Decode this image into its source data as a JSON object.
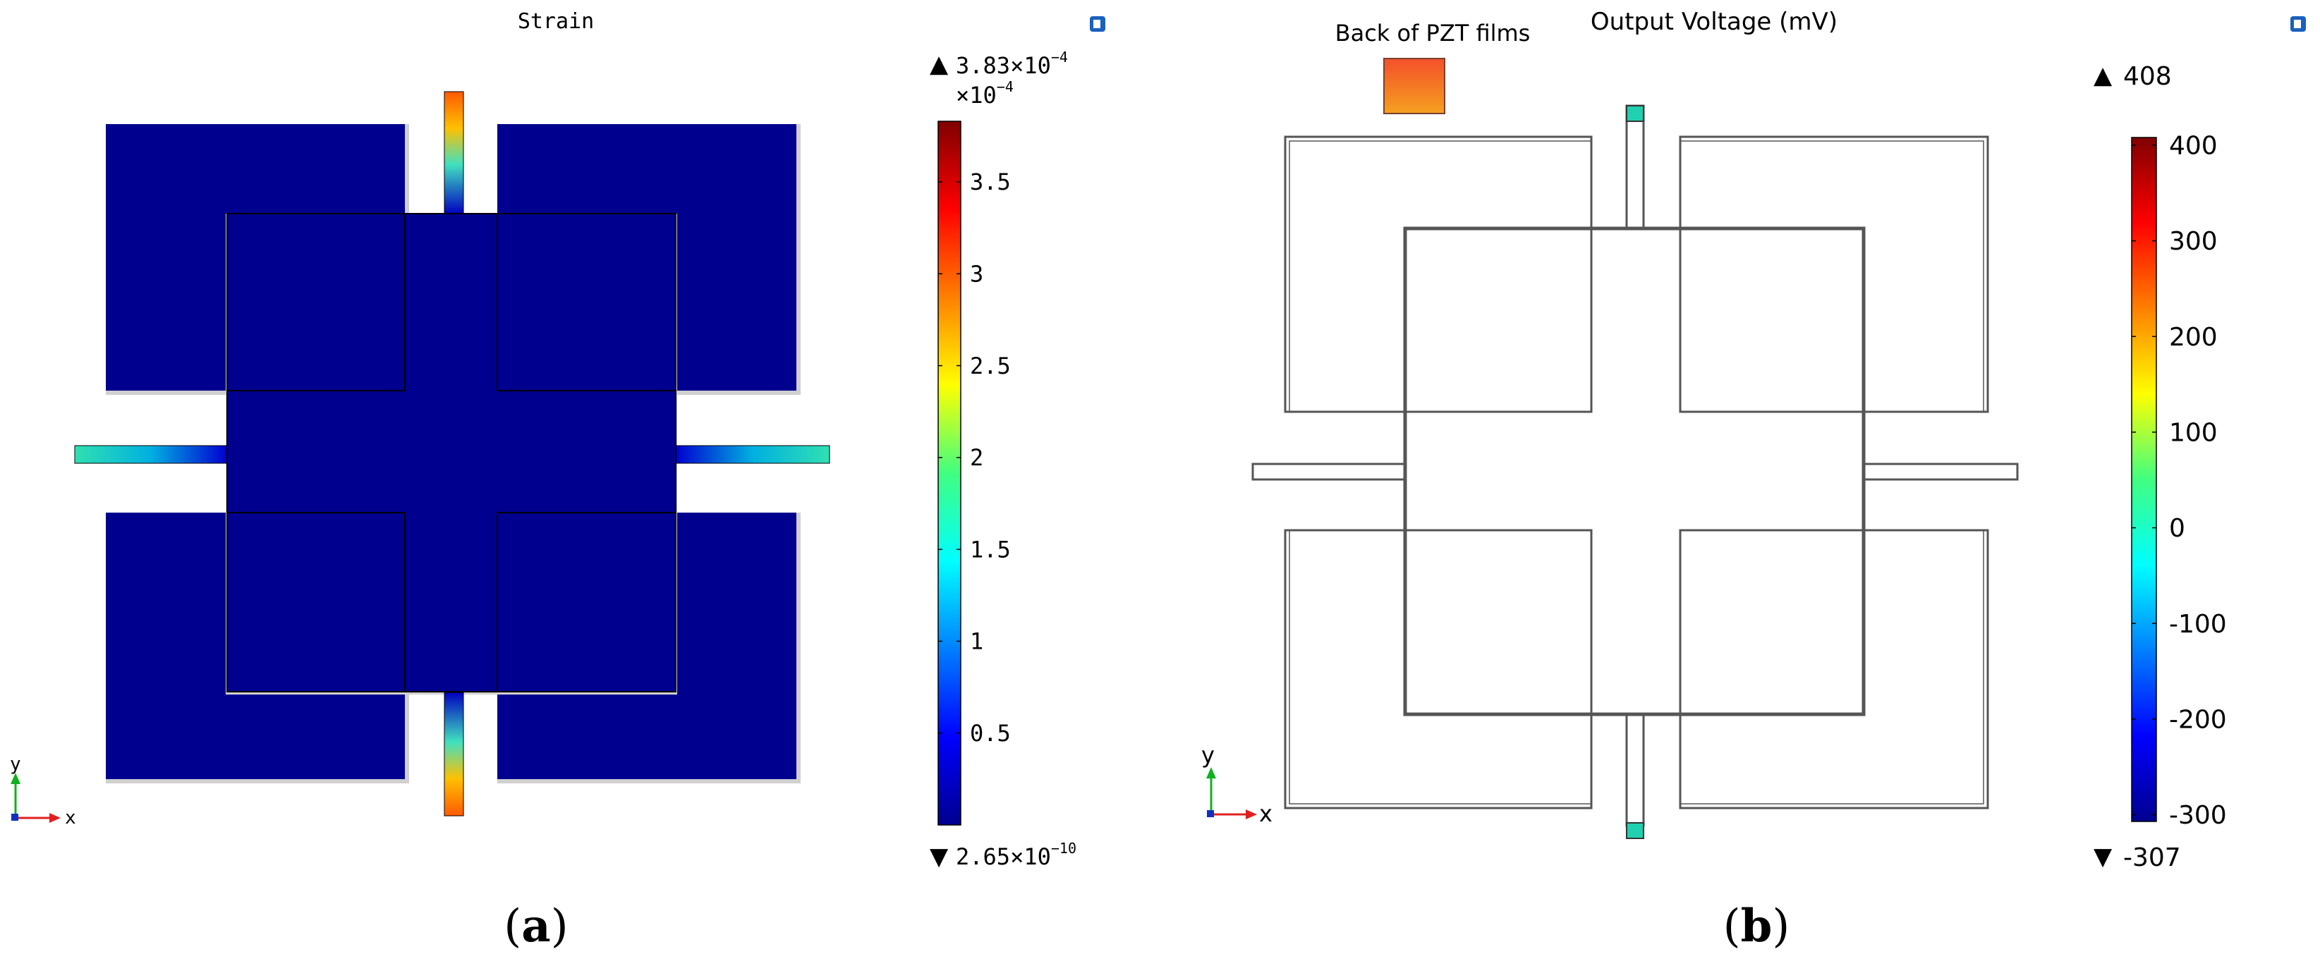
{
  "panel_a": {
    "title": "Strain",
    "caption_letter": "a",
    "legend_max_mantissa": "3.83×10",
    "legend_max_exp": "−4",
    "legend_scale_base": "×10",
    "legend_scale_exp": "−4",
    "legend_min_mantissa": "2.65×10",
    "legend_min_exp": "−10",
    "ticks": [
      "3.5",
      "3",
      "2.5",
      "2",
      "1.5",
      "1",
      "0.5"
    ],
    "axis_y": "y",
    "axis_x": "x"
  },
  "panel_b": {
    "title": "Output Voltage (mV)",
    "inset_label": "Back of PZT films",
    "caption_letter": "b",
    "legend_max": "408",
    "legend_min": "-307",
    "ticks": [
      "400",
      "300",
      "200",
      "100",
      "0",
      "-100",
      "-200",
      "-300"
    ],
    "axis_y": "y",
    "axis_x": "x"
  },
  "colors": {
    "strain_fill": "#00008f",
    "voltage_contact": "#20d0b0",
    "inset_top": "#f4502a",
    "inset_bottom": "#f5a020"
  }
}
